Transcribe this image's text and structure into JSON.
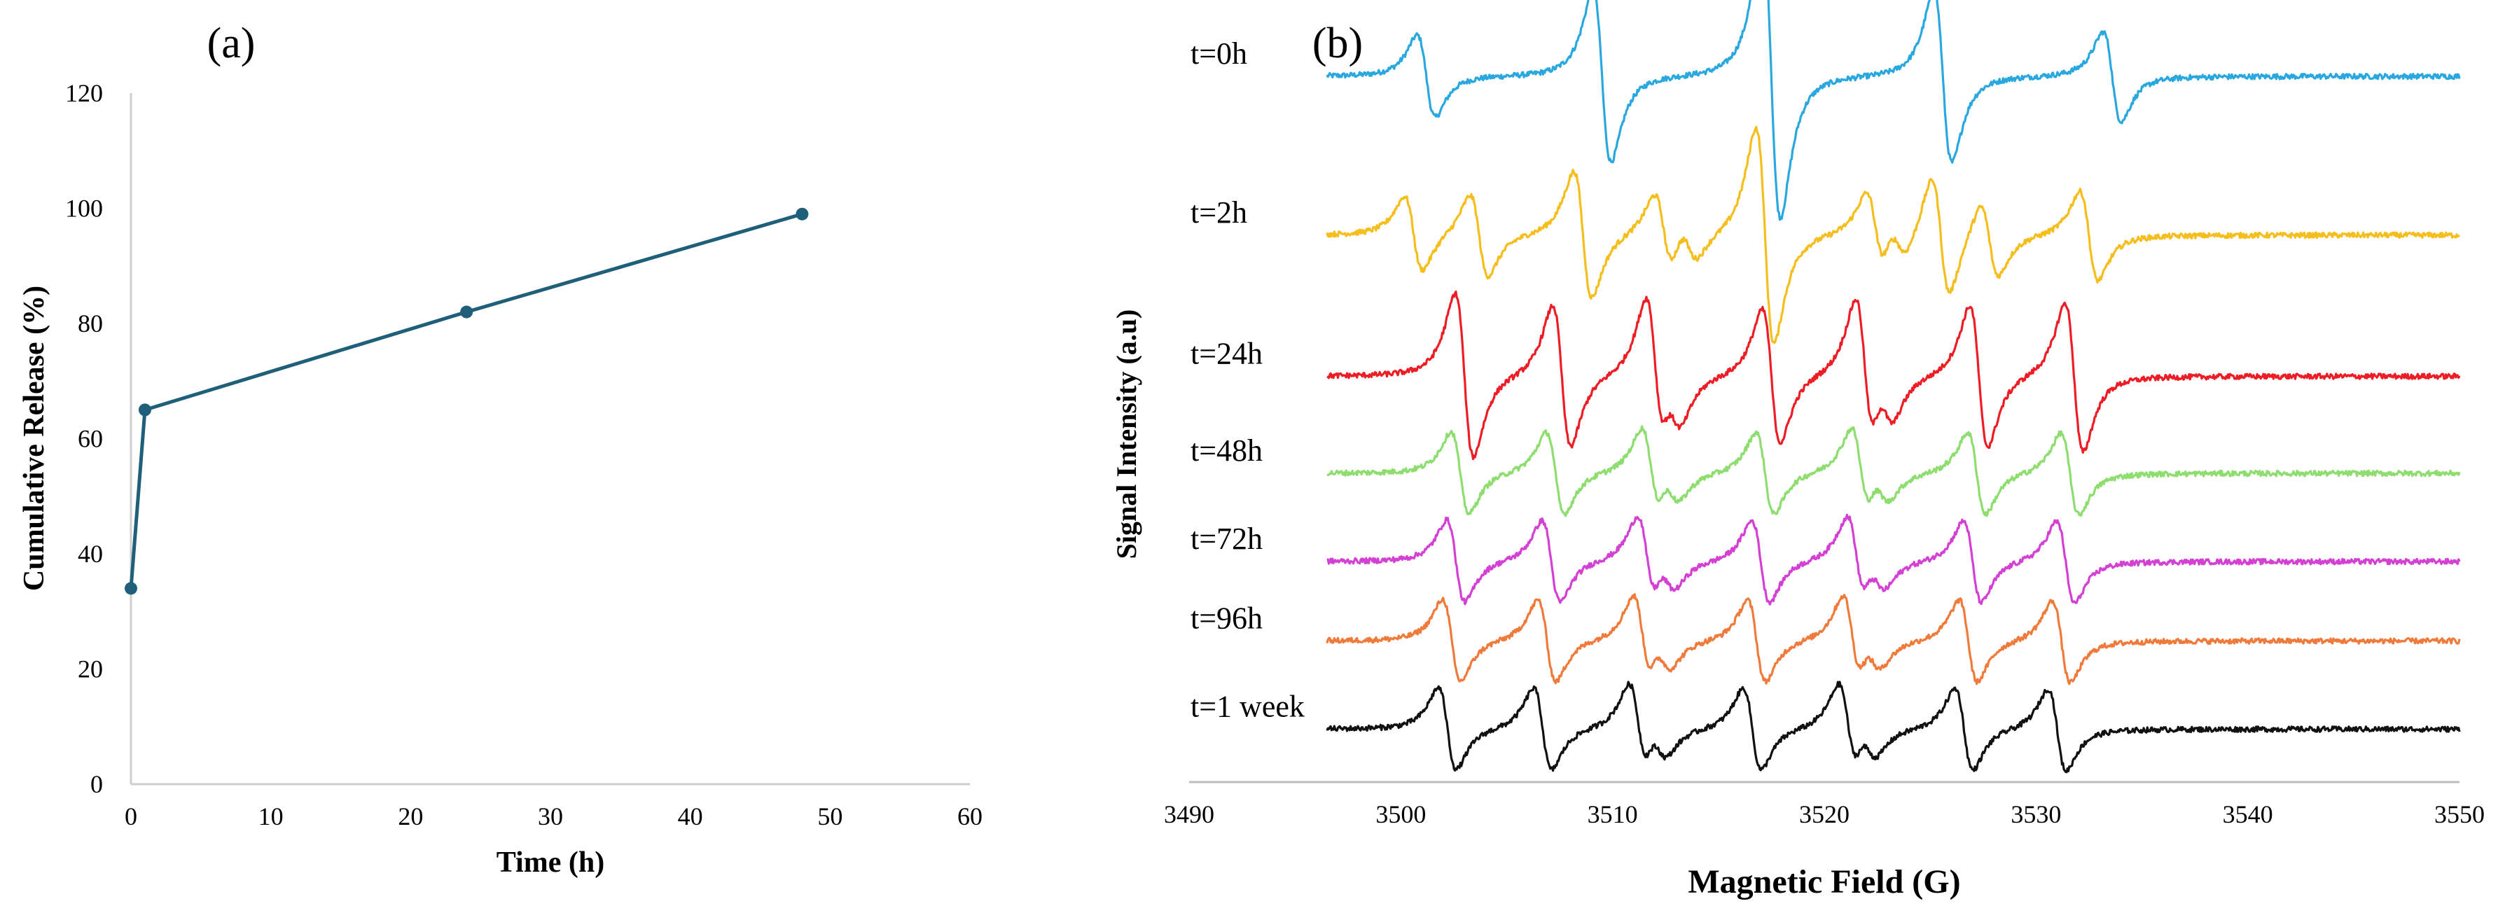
{
  "chart_data": [
    {
      "panel_label": "(a)",
      "type": "line",
      "title": "",
      "xlabel": "Time (h)",
      "ylabel": "Cumulative Release (%)",
      "xlim": [
        0,
        60
      ],
      "ylim": [
        0,
        120
      ],
      "x_ticks": [
        "0",
        "10",
        "20",
        "30",
        "40",
        "50",
        "60"
      ],
      "y_ticks": [
        "0",
        "20",
        "40",
        "60",
        "80",
        "100",
        "120"
      ],
      "grid": false,
      "series": [
        {
          "name": "Cumulative Release",
          "color": "#1f5f7a",
          "x": [
            0,
            1,
            24,
            48
          ],
          "y": [
            34,
            65,
            82,
            99
          ]
        }
      ]
    },
    {
      "panel_label": "(b)",
      "type": "line",
      "title": "",
      "xlabel": "Magnetic Field (G)",
      "ylabel": "Signal Intensity  (a.u)",
      "xlim": [
        3490,
        3550
      ],
      "x_ticks": [
        "3490",
        "3500",
        "3510",
        "3520",
        "3530",
        "3540",
        "3550"
      ],
      "grid": false,
      "legend": "inline labels at left of each trace",
      "series": [
        {
          "name": "t=0h",
          "color": "#29a8e0",
          "baseline": 8.0,
          "amp": 1.0,
          "lines": [
            {
              "pos": 3501.2,
              "h": 0.55
            },
            {
              "pos": 3509.5,
              "h": 1.15
            },
            {
              "pos": 3517.5,
              "h": 1.9
            },
            {
              "pos": 3525.6,
              "h": 1.15
            },
            {
              "pos": 3533.6,
              "h": 0.6
            }
          ]
        },
        {
          "name": "t=2h",
          "color": "#f5be1c",
          "baseline": 6.2,
          "amp": 1.0,
          "lines": [
            {
              "pos": 3500.6,
              "h": 0.5
            },
            {
              "pos": 3503.7,
              "h": 0.55
            },
            {
              "pos": 3508.6,
              "h": 0.85
            },
            {
              "pos": 3512.4,
              "h": 0.5
            },
            {
              "pos": 3513.6,
              "h": 0.25
            },
            {
              "pos": 3517.2,
              "h": 1.45
            },
            {
              "pos": 3522.4,
              "h": 0.5
            },
            {
              "pos": 3523.5,
              "h": 0.25
            },
            {
              "pos": 3525.5,
              "h": 0.8
            },
            {
              "pos": 3527.8,
              "h": 0.5
            },
            {
              "pos": 3532.5,
              "h": 0.6
            }
          ]
        },
        {
          "name": "t=24h",
          "color": "#ee1c24",
          "baseline": 4.6,
          "amp": 1.0,
          "lines": [
            {
              "pos": 3503.0,
              "h": 1.1
            },
            {
              "pos": 3507.6,
              "h": 0.95
            },
            {
              "pos": 3512.0,
              "h": 0.95
            },
            {
              "pos": 3512.9,
              "h": 0.35
            },
            {
              "pos": 3517.5,
              "h": 0.9
            },
            {
              "pos": 3521.9,
              "h": 0.95
            },
            {
              "pos": 3522.9,
              "h": 0.35
            },
            {
              "pos": 3527.3,
              "h": 0.95
            },
            {
              "pos": 3531.8,
              "h": 1.0
            }
          ]
        },
        {
          "name": "t=48h",
          "color": "#8ddd6f",
          "baseline": 3.5,
          "amp": 1.0,
          "lines": [
            {
              "pos": 3502.8,
              "h": 0.55
            },
            {
              "pos": 3507.3,
              "h": 0.55
            },
            {
              "pos": 3511.8,
              "h": 0.55
            },
            {
              "pos": 3512.8,
              "h": 0.22
            },
            {
              "pos": 3517.2,
              "h": 0.55
            },
            {
              "pos": 3521.7,
              "h": 0.55
            },
            {
              "pos": 3522.7,
              "h": 0.22
            },
            {
              "pos": 3527.2,
              "h": 0.55
            },
            {
              "pos": 3531.6,
              "h": 0.55
            }
          ]
        },
        {
          "name": "t=72h",
          "color": "#d43fd4",
          "baseline": 2.5,
          "amp": 1.0,
          "lines": [
            {
              "pos": 3502.6,
              "h": 0.55
            },
            {
              "pos": 3507.1,
              "h": 0.55
            },
            {
              "pos": 3511.6,
              "h": 0.55
            },
            {
              "pos": 3512.6,
              "h": 0.22
            },
            {
              "pos": 3517.0,
              "h": 0.55
            },
            {
              "pos": 3521.5,
              "h": 0.55
            },
            {
              "pos": 3522.5,
              "h": 0.22
            },
            {
              "pos": 3527.0,
              "h": 0.55
            },
            {
              "pos": 3531.4,
              "h": 0.55
            }
          ]
        },
        {
          "name": "t=96h",
          "color": "#f07a3a",
          "baseline": 1.6,
          "amp": 1.0,
          "lines": [
            {
              "pos": 3502.4,
              "h": 0.55
            },
            {
              "pos": 3506.9,
              "h": 0.55
            },
            {
              "pos": 3511.4,
              "h": 0.55
            },
            {
              "pos": 3512.4,
              "h": 0.22
            },
            {
              "pos": 3516.8,
              "h": 0.55
            },
            {
              "pos": 3521.3,
              "h": 0.55
            },
            {
              "pos": 3522.3,
              "h": 0.22
            },
            {
              "pos": 3526.8,
              "h": 0.55
            },
            {
              "pos": 3531.2,
              "h": 0.55
            }
          ]
        },
        {
          "name": "t=1 week",
          "color": "#111111",
          "baseline": 0.6,
          "amp": 1.0,
          "lines": [
            {
              "pos": 3502.2,
              "h": 0.55
            },
            {
              "pos": 3506.7,
              "h": 0.55
            },
            {
              "pos": 3511.2,
              "h": 0.55
            },
            {
              "pos": 3512.2,
              "h": 0.22
            },
            {
              "pos": 3516.6,
              "h": 0.55
            },
            {
              "pos": 3521.1,
              "h": 0.55
            },
            {
              "pos": 3522.1,
              "h": 0.22
            },
            {
              "pos": 3526.6,
              "h": 0.55
            },
            {
              "pos": 3531.0,
              "h": 0.55
            }
          ]
        }
      ]
    }
  ]
}
